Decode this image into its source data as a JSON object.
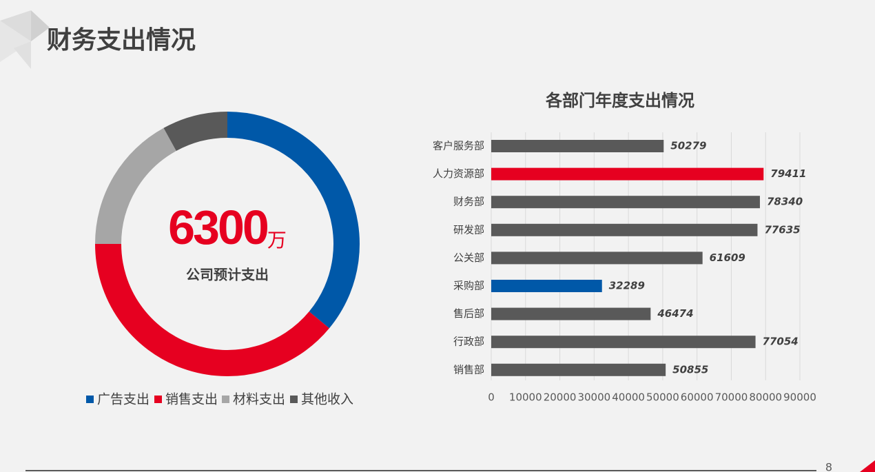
{
  "title": "财务支出情况",
  "page_number": "8",
  "chart_data": [
    {
      "type": "pie",
      "center_value": "6300",
      "center_unit": "万",
      "center_label": "公司预计支出",
      "categories": [
        "广告支出",
        "销售支出",
        "材料支出",
        "其他收入"
      ],
      "values": [
        36,
        39,
        17,
        8
      ],
      "colors": [
        "#0058a8",
        "#e60020",
        "#a6a6a6",
        "#595959"
      ]
    },
    {
      "type": "bar",
      "orientation": "horizontal",
      "title": "各部门年度支出情况",
      "categories": [
        "客户服务部",
        "人力资源部",
        "财务部",
        "研发部",
        "公关部",
        "采购部",
        "售后部",
        "行政部",
        "销售部"
      ],
      "values": [
        50279,
        79411,
        78340,
        77635,
        61609,
        32289,
        46474,
        77054,
        50855
      ],
      "colors": [
        "#595959",
        "#e60020",
        "#595959",
        "#595959",
        "#595959",
        "#0058a8",
        "#595959",
        "#595959",
        "#595959"
      ],
      "xlim": [
        0,
        90000
      ],
      "xticks": [
        0,
        10000,
        20000,
        30000,
        40000,
        50000,
        60000,
        70000,
        80000,
        90000
      ],
      "grid": true
    }
  ]
}
